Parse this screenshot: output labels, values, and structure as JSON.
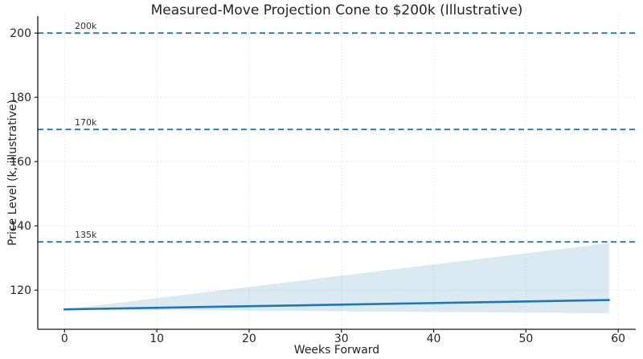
{
  "chart_data": {
    "type": "line",
    "title": "Measured-Move Projection Cone to $200k (Illustrative)",
    "xlabel": "Weeks Forward",
    "ylabel": "Price Level (k, illustrative)",
    "xlim": [
      -2.9,
      61.9
    ],
    "ylim": [
      107.8,
      205.3
    ],
    "xticks": [
      0,
      10,
      20,
      30,
      40,
      50,
      60
    ],
    "yticks": [
      120,
      140,
      160,
      180,
      200
    ],
    "grid": true,
    "legend_position": "none",
    "series": [
      {
        "name": "central-projection-line",
        "type": "line",
        "x": [
          0,
          59
        ],
        "y": [
          114,
          116.9
        ]
      },
      {
        "name": "projection-cone-band",
        "type": "band",
        "x": [
          0,
          59
        ],
        "upper": [
          114,
          134.6
        ],
        "lower": [
          114,
          112.8
        ]
      }
    ],
    "level_lines": [
      {
        "label": "200k",
        "value": 200
      },
      {
        "label": "170k",
        "value": 170
      },
      {
        "label": "135k",
        "value": 135
      }
    ],
    "colors": {
      "accent_blue": "#1f77b4",
      "band_fill": "rgba(31,119,180,0.16)",
      "grid": "#c8c8c8",
      "spine": "#1a1a1a",
      "tick_text": "#262626",
      "level_label_text": "#333333",
      "background": "#ffffff"
    }
  }
}
